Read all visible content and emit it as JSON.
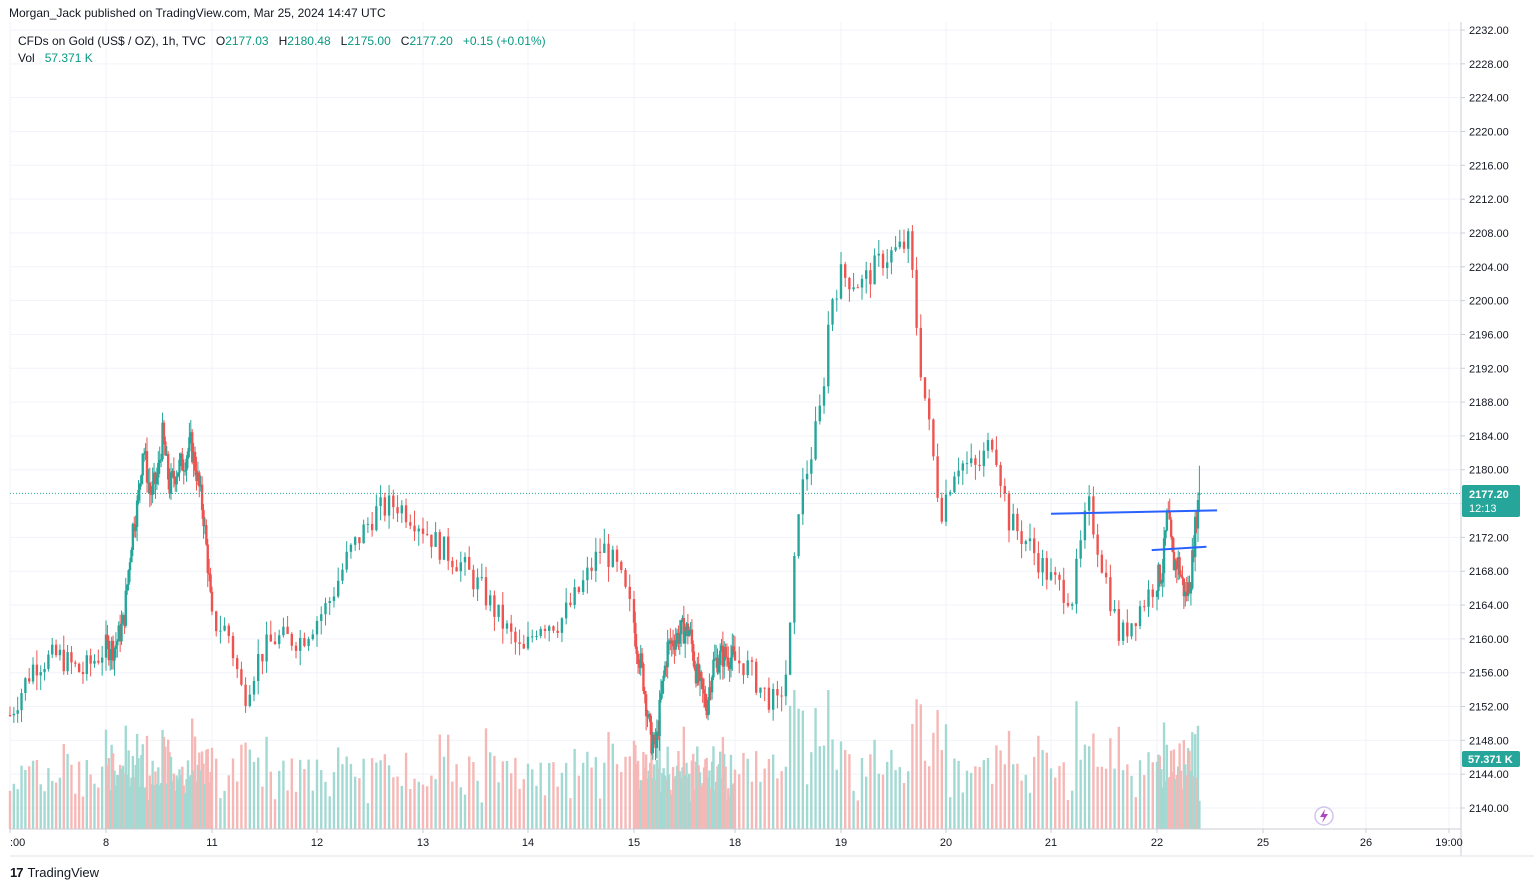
{
  "header": {
    "publisher": "Morgan_Jack published on TradingView.com, Mar 25, 2024 14:47 UTC",
    "symbol": "CFDs on Gold (US$ / OZ), 1h, TVC",
    "open_label": "O",
    "open": "2177.03",
    "high_label": "H",
    "high": "2180.48",
    "low_label": "L",
    "low": "2175.00",
    "close_label": "C",
    "close": "2177.20",
    "change": "+0.15 (+0.01%)",
    "vol_label": "Vol",
    "vol_value": "57.371 K"
  },
  "footer": {
    "brand": "TradingView",
    "logo_icon": "tradingview-logo-icon"
  },
  "colors": {
    "up": "#26a69a",
    "down": "#ef5350",
    "up_vol": "#a3d9d3",
    "down_vol": "#f5b8b6",
    "trendline": "#2962ff",
    "grid": "#f0f3fa",
    "dotted_last": "#26a69a"
  },
  "chart_data": {
    "type": "candlestick",
    "title": "",
    "ylim": [
      2137.5,
      2232.0
    ],
    "y_ticks": [
      2140,
      2144,
      2148,
      2152,
      2156,
      2160,
      2164,
      2168,
      2172,
      2176,
      2180,
      2184,
      2188,
      2192,
      2196,
      2200,
      2204,
      2208,
      2212,
      2216,
      2220,
      2224,
      2228,
      2232
    ],
    "x_ticks": [
      {
        "label": ":00",
        "day": 7.0
      },
      {
        "label": "8",
        "day": 8.0
      },
      {
        "label": "11",
        "day": 11.0
      },
      {
        "label": "12",
        "day": 12.0
      },
      {
        "label": "13",
        "day": 13.0
      },
      {
        "label": "14",
        "day": 14.0
      },
      {
        "label": "15",
        "day": 15.0
      },
      {
        "label": "18",
        "day": 18.0
      },
      {
        "label": "19",
        "day": 19.0
      },
      {
        "label": "20",
        "day": 20.0
      },
      {
        "label": "21",
        "day": 21.0
      },
      {
        "label": "22",
        "day": 22.0
      },
      {
        "label": "25",
        "day": 25.0
      },
      {
        "label": "26",
        "day": 26.0
      },
      {
        "label": "19:00",
        "day": 26.8
      }
    ],
    "last_price": {
      "price": "2177.20",
      "countdown": "12:13",
      "value": 2177.2
    },
    "volume_tag": {
      "label": "57.371 K",
      "value": 57.371
    },
    "anchors": [
      {
        "day": 7.0,
        "price": 2151
      },
      {
        "day": 7.25,
        "price": 2157
      },
      {
        "day": 7.5,
        "price": 2158
      },
      {
        "day": 7.75,
        "price": 2156
      },
      {
        "day": 8.0,
        "price": 2159
      },
      {
        "day": 8.25,
        "price": 2159
      },
      {
        "day": 8.5,
        "price": 2162
      },
      {
        "day": 8.75,
        "price": 2173
      },
      {
        "day": 8.9,
        "price": 2176
      },
      {
        "day": 9.05,
        "price": 2183
      },
      {
        "day": 9.25,
        "price": 2177
      },
      {
        "day": 9.45,
        "price": 2179
      },
      {
        "day": 9.6,
        "price": 2184
      },
      {
        "day": 9.8,
        "price": 2178
      },
      {
        "day": 10.0,
        "price": 2180
      },
      {
        "day": 10.2,
        "price": 2181
      },
      {
        "day": 10.4,
        "price": 2183
      },
      {
        "day": 10.55,
        "price": 2180
      },
      {
        "day": 10.75,
        "price": 2175
      },
      {
        "day": 10.9,
        "price": 2168
      },
      {
        "day": 11.0,
        "price": 2162
      },
      {
        "day": 11.15,
        "price": 2161
      },
      {
        "day": 11.3,
        "price": 2153
      },
      {
        "day": 11.45,
        "price": 2158
      },
      {
        "day": 11.6,
        "price": 2160
      },
      {
        "day": 11.85,
        "price": 2160
      },
      {
        "day": 12.1,
        "price": 2164
      },
      {
        "day": 12.3,
        "price": 2170
      },
      {
        "day": 12.55,
        "price": 2175
      },
      {
        "day": 12.75,
        "price": 2176
      },
      {
        "day": 12.95,
        "price": 2174
      },
      {
        "day": 13.15,
        "price": 2171
      },
      {
        "day": 13.35,
        "price": 2169
      },
      {
        "day": 13.55,
        "price": 2166
      },
      {
        "day": 13.75,
        "price": 2162
      },
      {
        "day": 13.95,
        "price": 2158
      },
      {
        "day": 14.1,
        "price": 2162
      },
      {
        "day": 14.3,
        "price": 2162
      },
      {
        "day": 14.5,
        "price": 2166
      },
      {
        "day": 14.7,
        "price": 2171
      },
      {
        "day": 14.85,
        "price": 2168
      },
      {
        "day": 15.05,
        "price": 2160
      },
      {
        "day": 15.25,
        "price": 2156
      },
      {
        "day": 15.5,
        "price": 2148
      },
      {
        "day": 15.65,
        "price": 2147
      },
      {
        "day": 15.8,
        "price": 2153
      },
      {
        "day": 16.0,
        "price": 2159
      },
      {
        "day": 16.2,
        "price": 2160
      },
      {
        "day": 16.45,
        "price": 2161
      },
      {
        "day": 16.65,
        "price": 2161
      },
      {
        "day": 16.85,
        "price": 2156
      },
      {
        "day": 17.0,
        "price": 2154
      },
      {
        "day": 17.15,
        "price": 2152
      },
      {
        "day": 17.35,
        "price": 2157
      },
      {
        "day": 17.6,
        "price": 2158
      },
      {
        "day": 17.85,
        "price": 2158
      },
      {
        "day": 18.1,
        "price": 2157
      },
      {
        "day": 18.25,
        "price": 2154
      },
      {
        "day": 18.4,
        "price": 2152
      },
      {
        "day": 18.5,
        "price": 2157
      },
      {
        "day": 18.6,
        "price": 2176
      },
      {
        "day": 18.72,
        "price": 2182
      },
      {
        "day": 18.82,
        "price": 2188
      },
      {
        "day": 18.9,
        "price": 2200
      },
      {
        "day": 19.0,
        "price": 2203
      },
      {
        "day": 19.2,
        "price": 2202
      },
      {
        "day": 19.4,
        "price": 2205
      },
      {
        "day": 19.55,
        "price": 2206
      },
      {
        "day": 19.65,
        "price": 2207
      },
      {
        "day": 19.75,
        "price": 2193
      },
      {
        "day": 19.85,
        "price": 2184
      },
      {
        "day": 19.95,
        "price": 2175
      },
      {
        "day": 20.1,
        "price": 2181
      },
      {
        "day": 20.3,
        "price": 2180
      },
      {
        "day": 20.45,
        "price": 2184
      },
      {
        "day": 20.6,
        "price": 2174
      },
      {
        "day": 20.8,
        "price": 2171
      },
      {
        "day": 21.0,
        "price": 2167
      },
      {
        "day": 21.2,
        "price": 2165
      },
      {
        "day": 21.35,
        "price": 2176
      },
      {
        "day": 21.5,
        "price": 2168
      },
      {
        "day": 21.65,
        "price": 2160
      },
      {
        "day": 21.8,
        "price": 2163
      },
      {
        "day": 22.0,
        "price": 2167
      },
      {
        "day": 22.15,
        "price": 2168
      },
      {
        "day": 22.3,
        "price": 2175
      },
      {
        "day": 22.45,
        "price": 2169
      },
      {
        "day": 22.6,
        "price": 2169
      },
      {
        "day": 22.8,
        "price": 2165
      },
      {
        "day": 22.95,
        "price": 2167
      },
      {
        "day": 23.1,
        "price": 2174
      },
      {
        "day": 23.2,
        "price": 2177.2
      }
    ],
    "volume_max_k": 120,
    "trendlines": [
      {
        "x1": 21.0,
        "y1": 2174.8,
        "x2": 23.7,
        "y2": 2175.2
      },
      {
        "x1": 21.95,
        "y1": 2170.5,
        "x2": 23.4,
        "y2": 2170.9
      }
    ]
  }
}
